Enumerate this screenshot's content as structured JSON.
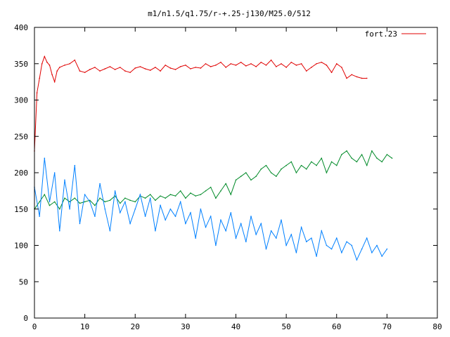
{
  "chart_data": {
    "type": "line",
    "title": "m1/n1.5/q1.75/r-+.25-j130/M25.0/512",
    "xlabel": "",
    "ylabel": "",
    "xlim": [
      0,
      80
    ],
    "ylim": [
      0,
      400
    ],
    "xticks": [
      0,
      10,
      20,
      30,
      40,
      50,
      60,
      70,
      80
    ],
    "yticks": [
      0,
      50,
      100,
      150,
      200,
      250,
      300,
      350,
      400
    ],
    "grid": false,
    "legend": {
      "placement": "top-right",
      "entries": [
        "fort.23"
      ]
    },
    "series": [
      {
        "name": "fort.23",
        "color": "#e00000",
        "note_style": "wrapping angle 0-360",
        "x": [
          0,
          0.5,
          1,
          1.5,
          2,
          2.5,
          3,
          3.5,
          4,
          4.5,
          5,
          6,
          7,
          8,
          9,
          10,
          11,
          12,
          13,
          14,
          15,
          16,
          17,
          18,
          19,
          20,
          21,
          22,
          23,
          24,
          25,
          26,
          27,
          28,
          29,
          30,
          31,
          32,
          33,
          34,
          35,
          36,
          37,
          38,
          39,
          40,
          41,
          42,
          43,
          44,
          45,
          46,
          47,
          48,
          49,
          50,
          51,
          52,
          53,
          54,
          55,
          56,
          57,
          58,
          59,
          60,
          61,
          62,
          63,
          64,
          65,
          66
        ],
        "values": [
          230,
          310,
          330,
          350,
          360,
          352,
          348,
          335,
          325,
          340,
          345,
          348,
          350,
          355,
          340,
          338,
          342,
          345,
          340,
          343,
          346,
          342,
          345,
          340,
          338,
          344,
          346,
          343,
          341,
          345,
          340,
          348,
          344,
          342,
          346,
          348,
          343,
          345,
          344,
          350,
          346,
          348,
          352,
          345,
          350,
          348,
          352,
          347,
          350,
          346,
          352,
          348,
          355,
          346,
          350,
          345,
          352,
          348,
          350,
          340,
          345,
          350,
          352,
          348,
          338,
          350,
          345,
          330,
          335,
          332,
          330,
          330
        ]
      },
      {
        "name": "",
        "color": "#008a28",
        "x": [
          0,
          1,
          2,
          3,
          4,
          5,
          6,
          7,
          8,
          9,
          10,
          11,
          12,
          13,
          14,
          15,
          16,
          17,
          18,
          19,
          20,
          21,
          22,
          23,
          24,
          25,
          26,
          27,
          28,
          29,
          30,
          31,
          32,
          33,
          34,
          35,
          36,
          37,
          38,
          39,
          40,
          41,
          42,
          43,
          44,
          45,
          46,
          47,
          48,
          49,
          50,
          51,
          52,
          53,
          54,
          55,
          56,
          57,
          58,
          59,
          60,
          61,
          62,
          63,
          64,
          65,
          66,
          67,
          68,
          69,
          70,
          71
        ],
        "values": [
          150,
          160,
          170,
          155,
          160,
          150,
          165,
          160,
          165,
          158,
          160,
          162,
          155,
          165,
          160,
          162,
          168,
          158,
          165,
          162,
          160,
          168,
          165,
          170,
          162,
          168,
          165,
          170,
          168,
          175,
          165,
          172,
          168,
          170,
          175,
          180,
          165,
          175,
          185,
          170,
          190,
          195,
          200,
          190,
          195,
          205,
          210,
          200,
          195,
          205,
          210,
          215,
          200,
          210,
          205,
          215,
          210,
          220,
          200,
          215,
          210,
          225,
          230,
          220,
          215,
          225,
          210,
          230,
          220,
          215,
          225,
          220
        ]
      },
      {
        "name": "",
        "color": "#0080ff",
        "x": [
          0,
          1,
          2,
          3,
          4,
          5,
          6,
          7,
          8,
          9,
          10,
          11,
          12,
          13,
          14,
          15,
          16,
          17,
          18,
          19,
          20,
          21,
          22,
          23,
          24,
          25,
          26,
          27,
          28,
          29,
          30,
          31,
          32,
          33,
          34,
          35,
          36,
          37,
          38,
          39,
          40,
          41,
          42,
          43,
          44,
          45,
          46,
          47,
          48,
          49,
          50,
          51,
          52,
          53,
          54,
          55,
          56,
          57,
          58,
          59,
          60,
          61,
          62,
          63,
          64,
          65,
          66,
          67,
          68,
          69,
          70
        ],
        "values": [
          180,
          140,
          220,
          160,
          200,
          120,
          190,
          150,
          210,
          130,
          170,
          160,
          140,
          185,
          150,
          120,
          175,
          145,
          160,
          130,
          150,
          170,
          140,
          165,
          120,
          155,
          135,
          150,
          140,
          160,
          130,
          145,
          110,
          150,
          125,
          140,
          100,
          135,
          120,
          145,
          110,
          130,
          105,
          140,
          115,
          130,
          95,
          120,
          110,
          135,
          100,
          115,
          90,
          125,
          105,
          110,
          85,
          120,
          100,
          95,
          110,
          90,
          105,
          100,
          80,
          95,
          110,
          90,
          100,
          85,
          95
        ]
      }
    ]
  }
}
